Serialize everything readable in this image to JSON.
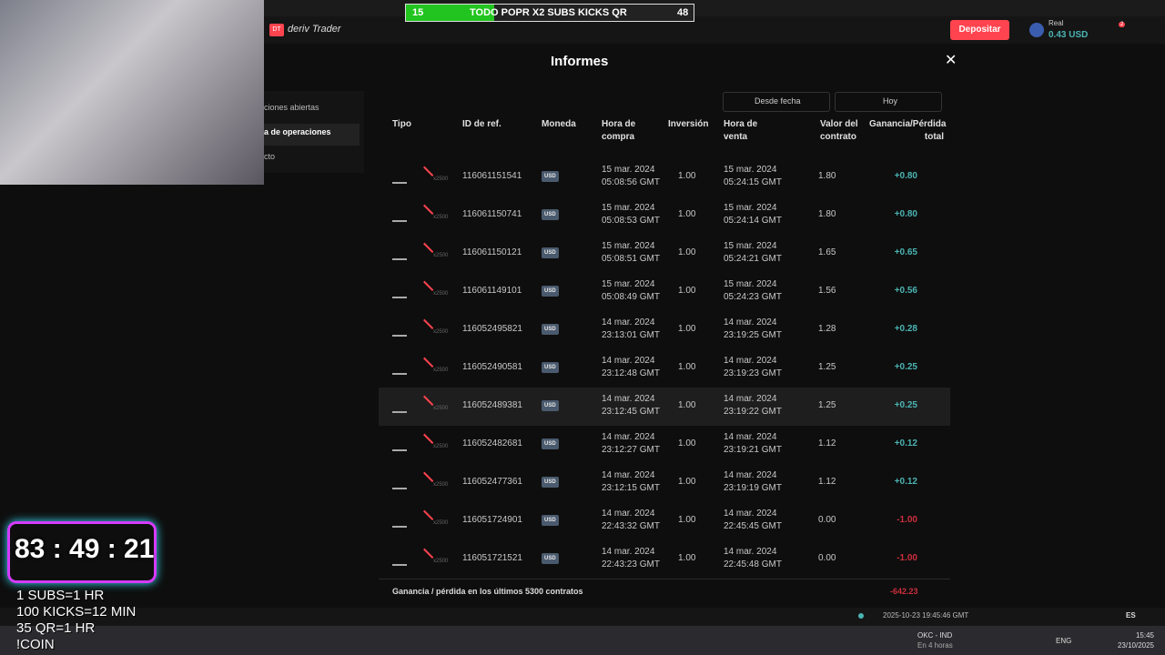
{
  "stream_banner": {
    "left": "15",
    "text": "TODO POPR X2 SUBS KICKS QR",
    "right": "48"
  },
  "header": {
    "logo_badge": "DT",
    "logo": "deriv Trader",
    "deposit": "Depositar",
    "account": "Real",
    "balance": "0.43 USD",
    "notifications": "2"
  },
  "sidebar": {
    "items": [
      "ciones abiertas",
      "a de operaciones",
      "cto"
    ]
  },
  "modal": {
    "title": "Informes",
    "filters": [
      "Desde fecha",
      "Hoy"
    ],
    "columns": [
      "Tipo",
      "ID de ref.",
      "Moneda",
      "Hora de compra",
      "Inversión",
      "Hora de venta",
      "Valor del contrato",
      "Ganancia/Pérdida total"
    ],
    "multiplier": "x2500",
    "rows": [
      [
        "116061151541",
        "USD",
        "15 mar. 2024",
        "05:08:56 GMT",
        "1.00",
        "15 mar. 2024",
        "05:24:15 GMT",
        "1.80",
        "+0.80"
      ],
      [
        "116061150741",
        "USD",
        "15 mar. 2024",
        "05:08:53 GMT",
        "1.00",
        "15 mar. 2024",
        "05:24:14 GMT",
        "1.80",
        "+0.80"
      ],
      [
        "116061150121",
        "USD",
        "15 mar. 2024",
        "05:08:51 GMT",
        "1.00",
        "15 mar. 2024",
        "05:24:21 GMT",
        "1.65",
        "+0.65"
      ],
      [
        "116061149101",
        "USD",
        "15 mar. 2024",
        "05:08:49 GMT",
        "1.00",
        "15 mar. 2024",
        "05:24:23 GMT",
        "1.56",
        "+0.56"
      ],
      [
        "116052495821",
        "USD",
        "14 mar. 2024",
        "23:13:01 GMT",
        "1.00",
        "14 mar. 2024",
        "23:19:25 GMT",
        "1.28",
        "+0.28"
      ],
      [
        "116052490581",
        "USD",
        "14 mar. 2024",
        "23:12:48 GMT",
        "1.00",
        "14 mar. 2024",
        "23:19:23 GMT",
        "1.25",
        "+0.25"
      ],
      [
        "116052489381",
        "USD",
        "14 mar. 2024",
        "23:12:45 GMT",
        "1.00",
        "14 mar. 2024",
        "23:19:22 GMT",
        "1.25",
        "+0.25"
      ],
      [
        "116052482681",
        "USD",
        "14 mar. 2024",
        "23:12:27 GMT",
        "1.00",
        "14 mar. 2024",
        "23:19:21 GMT",
        "1.12",
        "+0.12"
      ],
      [
        "116052477361",
        "USD",
        "14 mar. 2024",
        "23:12:15 GMT",
        "1.00",
        "14 mar. 2024",
        "23:19:19 GMT",
        "1.12",
        "+0.12"
      ],
      [
        "116051724901",
        "USD",
        "14 mar. 2024",
        "22:43:32 GMT",
        "1.00",
        "14 mar. 2024",
        "22:45:45 GMT",
        "0.00",
        "-1.00"
      ],
      [
        "116051721521",
        "USD",
        "14 mar. 2024",
        "22:43:23 GMT",
        "1.00",
        "14 mar. 2024",
        "22:45:48 GMT",
        "0.00",
        "-1.00"
      ]
    ],
    "footer_label": "Ganancia / pérdida en los últimos 5300 contratos",
    "footer_total": "-642.23"
  },
  "status_bar": {
    "time": "2025-10-23 19:45:46 GMT",
    "lang": "ES"
  },
  "overlay": {
    "timer": "83 : 49 : 21",
    "lines": [
      "1 SUBS=1 HR",
      "100 KICKS=12 MIN",
      "35 QR=1 HR",
      "!COIN"
    ]
  },
  "taskbar": {
    "weather_title": "OKC - IND",
    "weather_sub": "En 4 horas",
    "input": "ENG",
    "clock": "15:45",
    "date": "23/10/2025"
  }
}
